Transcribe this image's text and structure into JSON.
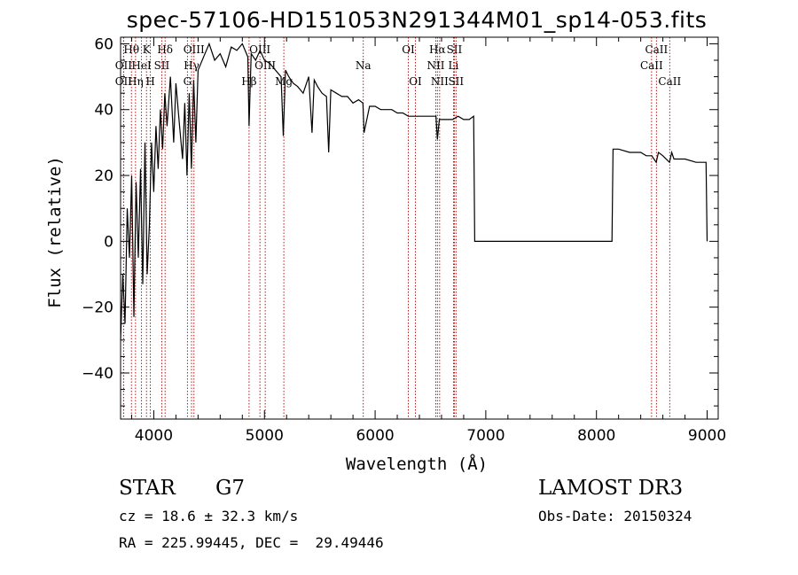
{
  "chart_data": {
    "type": "line",
    "title": "spec-57106-HD151053N291344M01_sp14-053.fits",
    "xlabel": "Wavelength (Å)",
    "ylabel": "Flux (relative)",
    "xlim": [
      3700,
      9100
    ],
    "ylim": [
      -54,
      62
    ],
    "xticks": [
      4000,
      5000,
      6000,
      7000,
      8000,
      9000
    ],
    "yticks": [
      -40,
      -20,
      0,
      20,
      40,
      60
    ],
    "series": [
      {
        "name": "flux",
        "x": [
          3700,
          3720,
          3740,
          3760,
          3780,
          3800,
          3820,
          3840,
          3860,
          3880,
          3900,
          3920,
          3940,
          3960,
          3980,
          4000,
          4020,
          4040,
          4060,
          4080,
          4100,
          4120,
          4150,
          4180,
          4200,
          4230,
          4260,
          4280,
          4300,
          4320,
          4340,
          4360,
          4380,
          4400,
          4450,
          4500,
          4550,
          4600,
          4650,
          4700,
          4750,
          4800,
          4850,
          4861,
          4880,
          4920,
          4960,
          5000,
          5050,
          5100,
          5150,
          5170,
          5190,
          5220,
          5260,
          5300,
          5350,
          5400,
          5430,
          5450,
          5480,
          5520,
          5560,
          5580,
          5600,
          5650,
          5700,
          5750,
          5800,
          5850,
          5890,
          5900,
          5950,
          6000,
          6050,
          6100,
          6150,
          6200,
          6250,
          6300,
          6400,
          6500,
          6550,
          6563,
          6580,
          6650,
          6700,
          6750,
          6800,
          6850,
          6890,
          6900,
          6920,
          7000,
          7200,
          7500,
          7800,
          8000,
          8100,
          8140,
          8150,
          8200,
          8300,
          8400,
          8450,
          8500,
          8540,
          8560,
          8600,
          8660,
          8680,
          8700,
          8800,
          8900,
          8990,
          9000
        ],
        "y": [
          -30,
          -10,
          -25,
          10,
          -5,
          20,
          -23,
          18,
          -5,
          22,
          -13,
          30,
          -10,
          5,
          30,
          15,
          35,
          22,
          40,
          28,
          45,
          35,
          50,
          30,
          48,
          36,
          25,
          42,
          20,
          45,
          22,
          49,
          30,
          52,
          56,
          60,
          55,
          57,
          53,
          59,
          58,
          60,
          56,
          35,
          57,
          55,
          58,
          55,
          54,
          52,
          50,
          32,
          52,
          50,
          48,
          47,
          45,
          50,
          33,
          49,
          47,
          45,
          44,
          27,
          46,
          45,
          44,
          44,
          42,
          43,
          42,
          33,
          41,
          41,
          40,
          40,
          40,
          39,
          39,
          38,
          38,
          38,
          38,
          31,
          37,
          37,
          37,
          38,
          37,
          37,
          38,
          0,
          0,
          0,
          0,
          0,
          0,
          0,
          0,
          0,
          28,
          28,
          27,
          27,
          26,
          26,
          24,
          27,
          26,
          24,
          27,
          25,
          25,
          24,
          24,
          0
        ]
      }
    ],
    "lines": [
      {
        "name": "Hθ",
        "wl": 3798,
        "row": 0
      },
      {
        "name": "OII",
        "wl": 3727,
        "row": 1
      },
      {
        "name": "OII",
        "wl": 3727,
        "row": 2
      },
      {
        "name": "Hη",
        "wl": 3835,
        "row": 2
      },
      {
        "name": "K",
        "wl": 3934,
        "row": 0
      },
      {
        "name": "HeI",
        "wl": 3889,
        "row": 1
      },
      {
        "name": "H",
        "wl": 3969,
        "row": 2
      },
      {
        "name": "Hδ",
        "wl": 4102,
        "row": 0
      },
      {
        "name": "SII",
        "wl": 4072,
        "row": 1
      },
      {
        "name": "OIII",
        "wl": 4363,
        "row": 0
      },
      {
        "name": "Hγ",
        "wl": 4341,
        "row": 1
      },
      {
        "name": "G",
        "wl": 4304,
        "row": 2
      },
      {
        "name": "Hβ",
        "wl": 4861,
        "row": 2
      },
      {
        "name": "OIII",
        "wl": 4959,
        "row": 0
      },
      {
        "name": "OIII",
        "wl": 5007,
        "row": 1
      },
      {
        "name": "Mg",
        "wl": 5175,
        "row": 2
      },
      {
        "name": "Na",
        "wl": 5893,
        "row": 1
      },
      {
        "name": "OI",
        "wl": 6300,
        "row": 0
      },
      {
        "name": "OI",
        "wl": 6364,
        "row": 2
      },
      {
        "name": "Hα",
        "wl": 6563,
        "row": 0
      },
      {
        "name": "NII",
        "wl": 6548,
        "row": 1
      },
      {
        "name": "NII",
        "wl": 6583,
        "row": 2
      },
      {
        "name": "SII",
        "wl": 6716,
        "row": 0
      },
      {
        "name": "Li",
        "wl": 6708,
        "row": 1
      },
      {
        "name": "SII",
        "wl": 6731,
        "row": 2
      },
      {
        "name": "CaII",
        "wl": 8542,
        "row": 0
      },
      {
        "name": "CaII",
        "wl": 8498,
        "row": 1
      },
      {
        "name": "CaII",
        "wl": 8662,
        "row": 2
      }
    ]
  },
  "info": {
    "class": "STAR",
    "subclass": "G7",
    "cz": "cz = 18.6 ± 32.3 km/s",
    "coords": "RA = 225.99445, DEC =  29.49446",
    "survey": "LAMOST DR3",
    "obs_date": "Obs-Date: 20150324"
  }
}
